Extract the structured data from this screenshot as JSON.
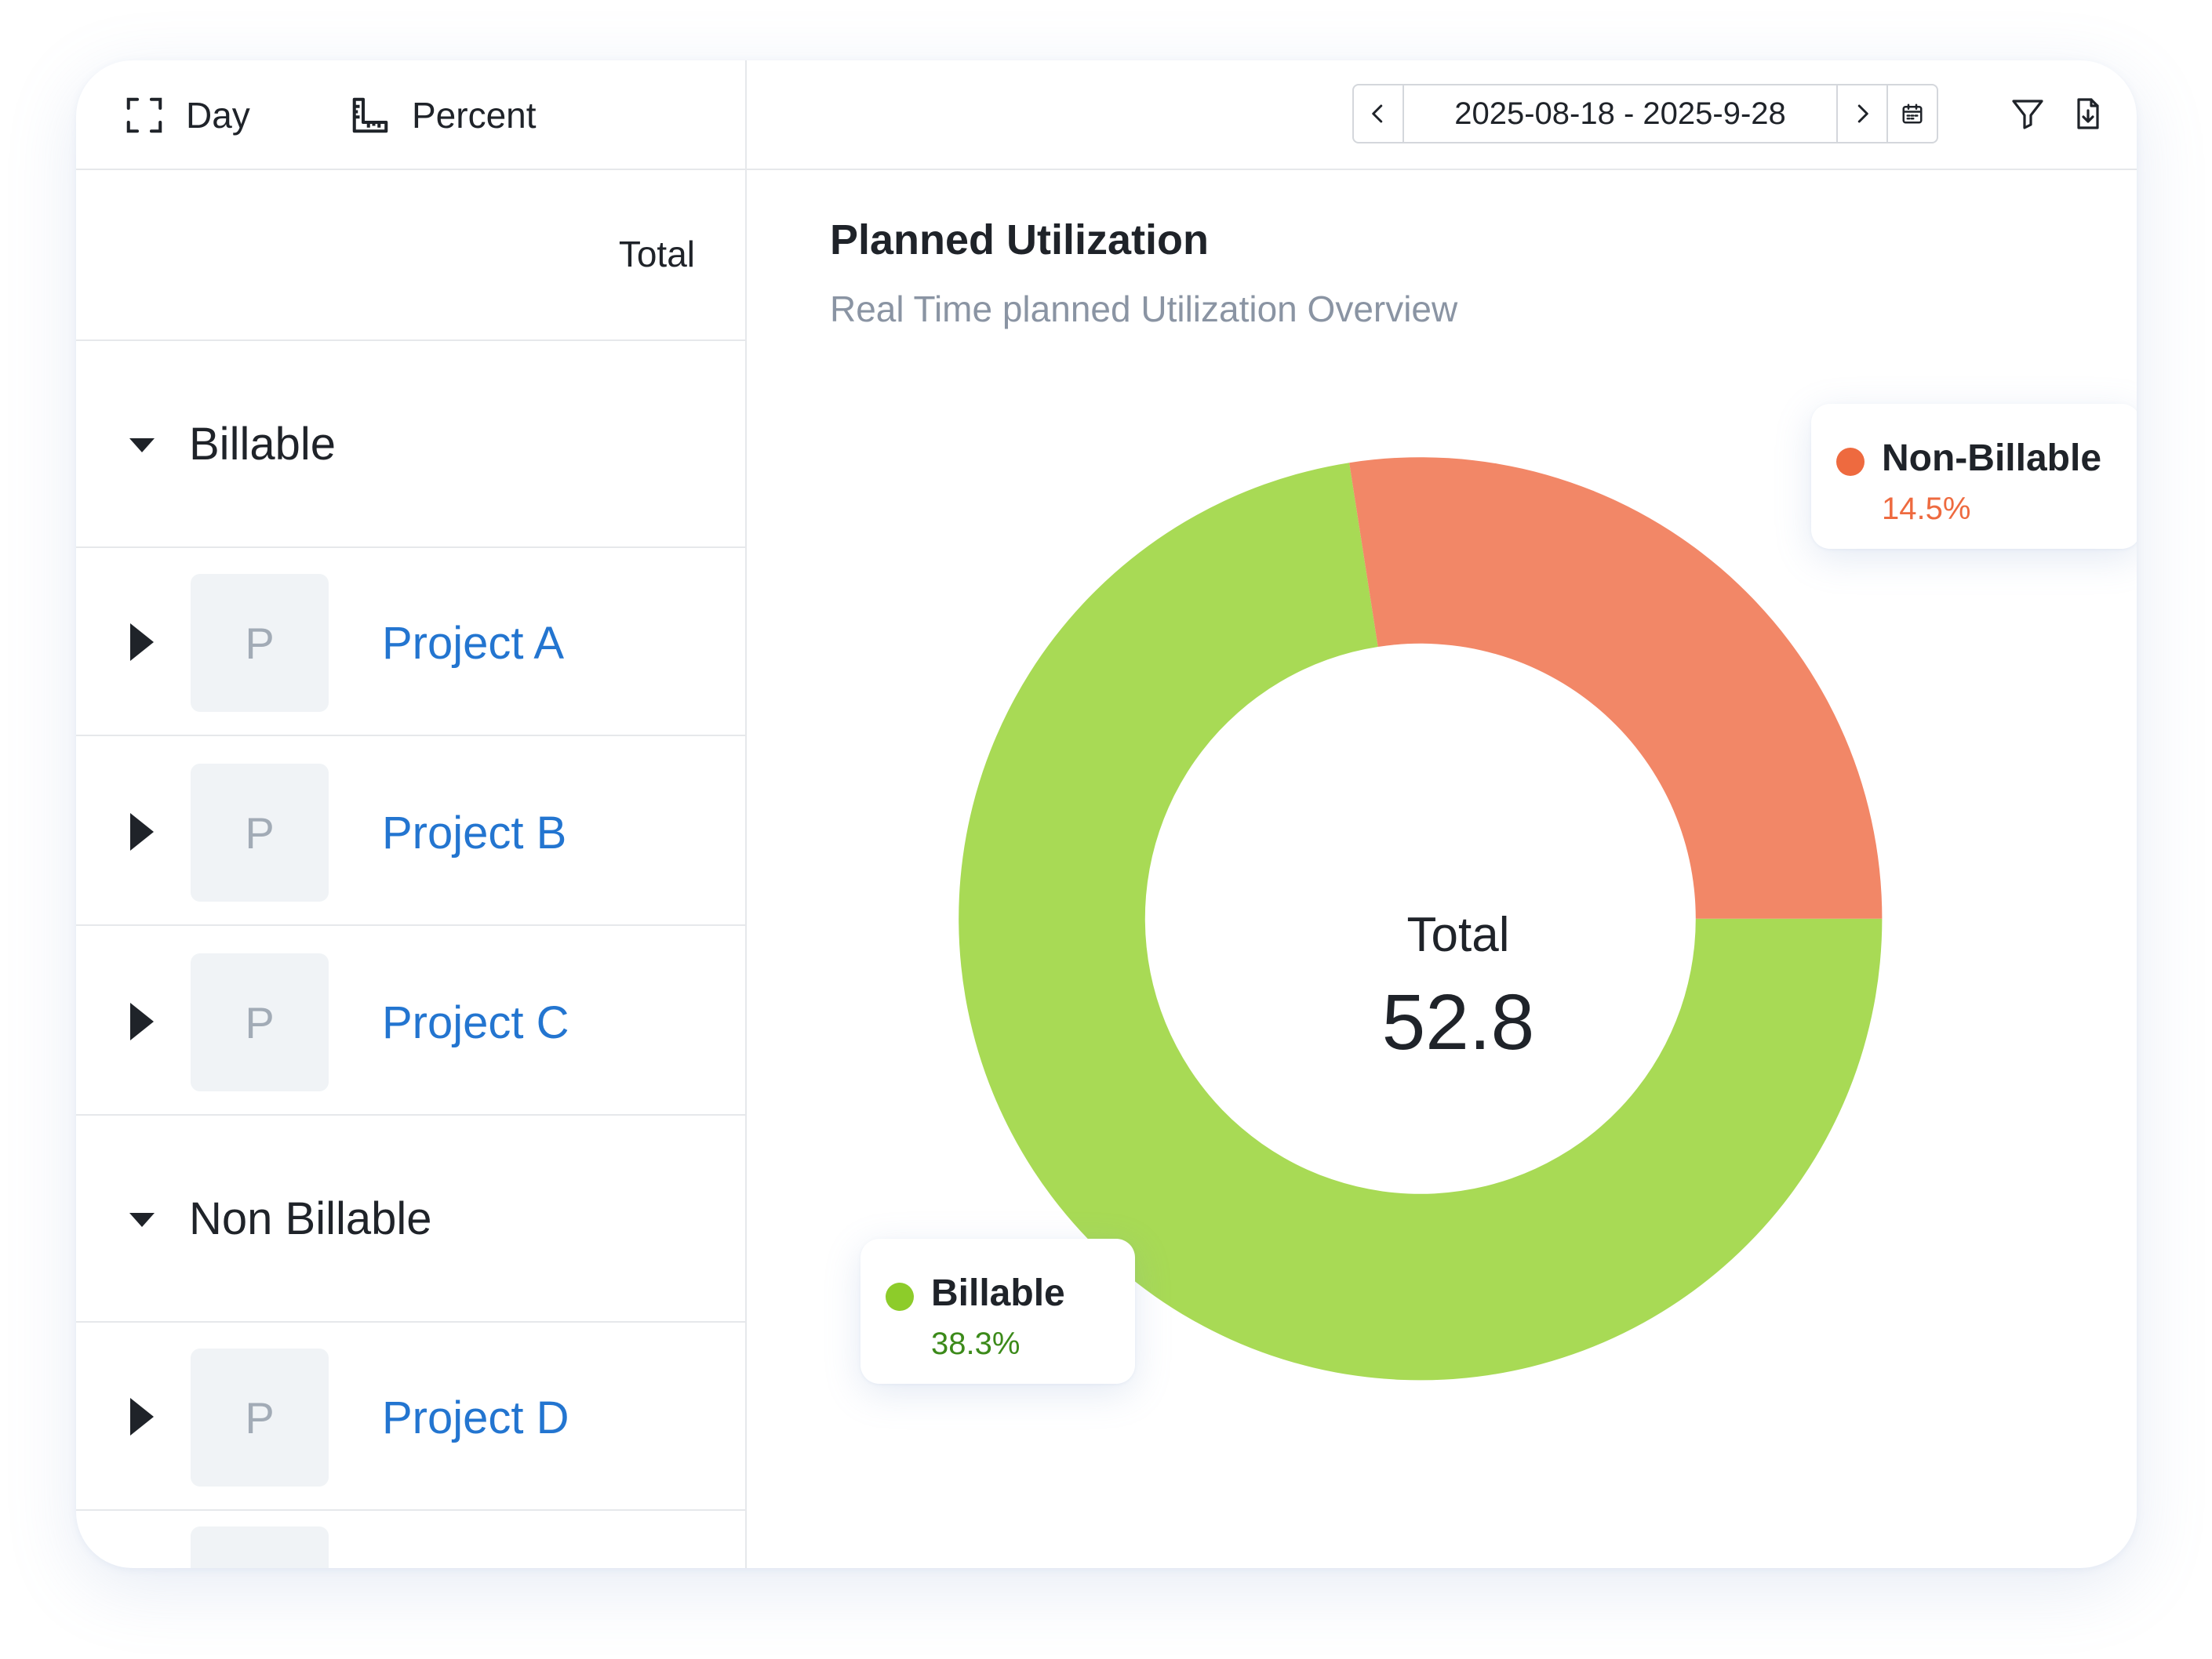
{
  "toolbar": {
    "day_label": "Day",
    "percent_label": "Percent"
  },
  "left_panel": {
    "total_header": "Total",
    "groups": [
      {
        "label": "Billable",
        "projects": [
          {
            "avatar": "P",
            "name": "Project A"
          },
          {
            "avatar": "P",
            "name": "Project B"
          },
          {
            "avatar": "P",
            "name": "Project C"
          }
        ]
      },
      {
        "label": "Non Billable",
        "projects": [
          {
            "avatar": "P",
            "name": "Project D"
          }
        ]
      }
    ]
  },
  "date_range": {
    "value": "2025-08-18 - 2025-9-28"
  },
  "icons": {
    "expand": "fullscreen-corners-icon",
    "percent": "ruler-icon",
    "prev": "chevron-left-icon",
    "next": "chevron-right-icon",
    "calendar": "calendar-icon",
    "filter": "filter-funnel-icon",
    "export": "file-download-icon",
    "caret_open": "caret-down-icon",
    "caret_closed": "caret-right-icon"
  },
  "colors": {
    "billable": "#a8da55",
    "non_billable": "#f28767",
    "billable_text": "#3c8a1a",
    "non_billable_text": "#ee6a3f",
    "link": "#2375d0"
  },
  "chart": {
    "title": "Planned Utilization",
    "subtitle": "Real Time planned Utilization Overview",
    "center_title": "Total",
    "center_value": "52.8"
  },
  "chart_data": {
    "type": "pie",
    "donut": true,
    "title": "Planned Utilization",
    "subtitle": "Real Time planned Utilization Overview",
    "categories": [
      "Billable",
      "Non-Billable"
    ],
    "values": [
      38.3,
      14.5
    ],
    "labels": [
      "38.3%",
      "14.5%"
    ],
    "colors": [
      "#a8da55",
      "#f28767"
    ],
    "total": 52.8
  }
}
